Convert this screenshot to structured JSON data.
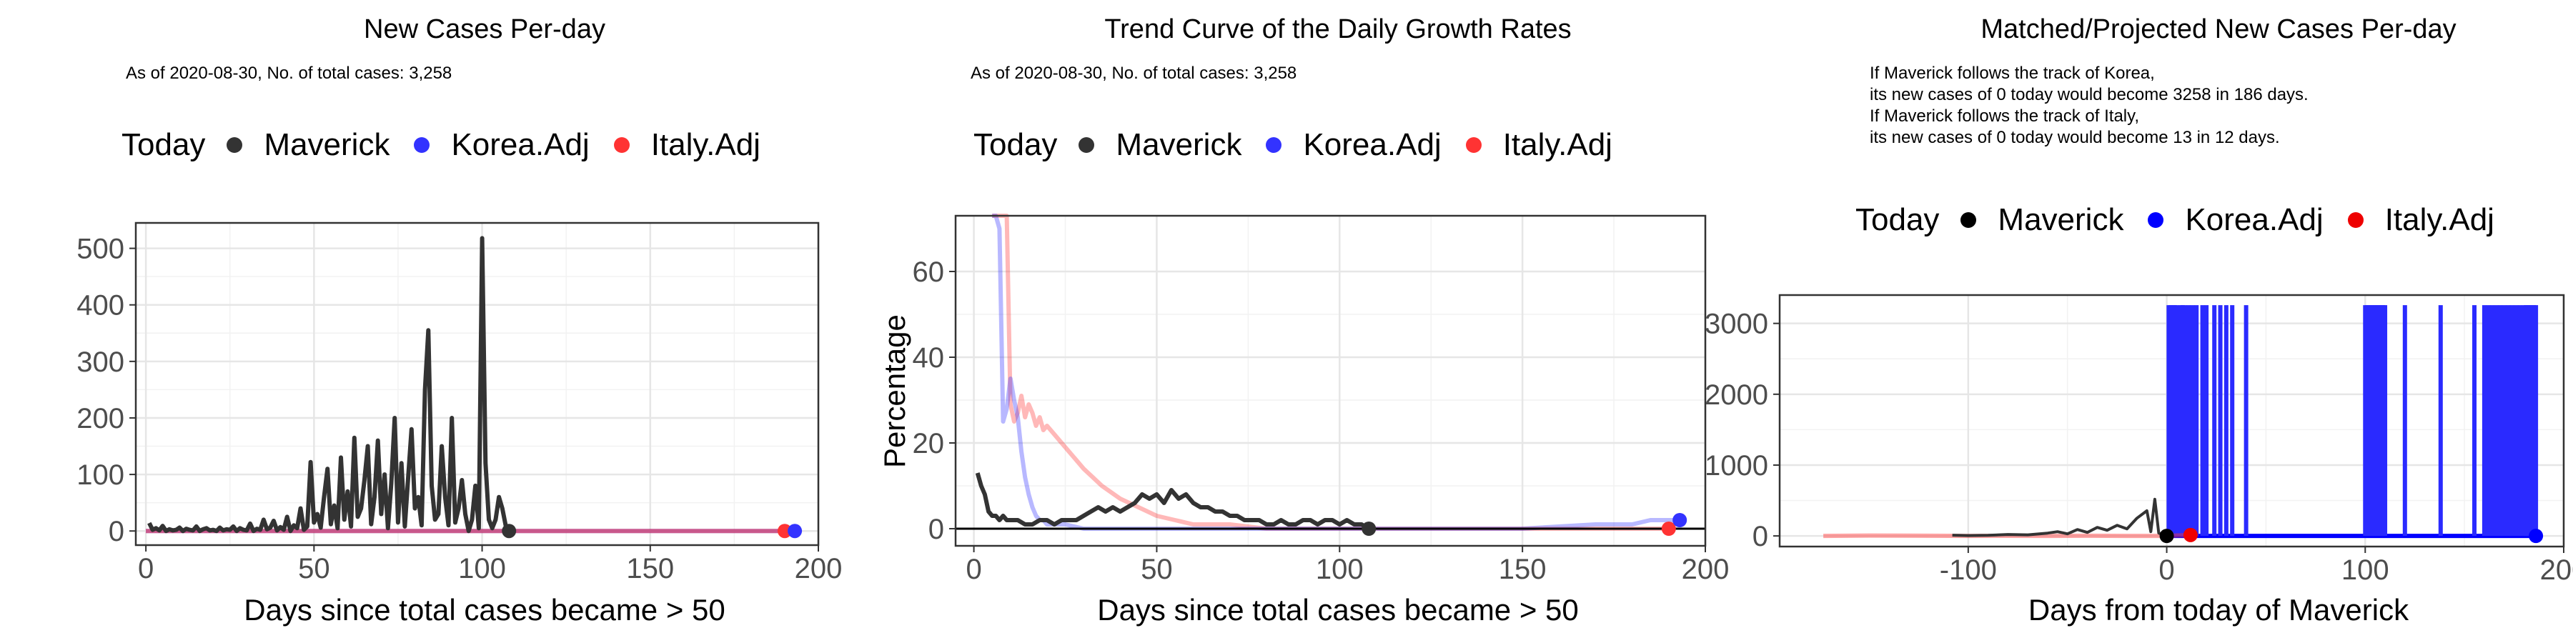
{
  "legend": {
    "title": "Today",
    "items": [
      {
        "label": "Maverick",
        "color": "#333333"
      },
      {
        "label": "Korea.Adj",
        "color": "#3333ff"
      },
      {
        "label": "Italy.Adj",
        "color": "#ff3333"
      }
    ]
  },
  "panels": {
    "p1": {
      "title": "New Cases Per-day",
      "subtitle": "As of 2020-08-30, No. of total cases: 3,258",
      "xlabel": "Days since total cases became > 50"
    },
    "p2": {
      "title": "Trend Curve of the Daily Growth Rates",
      "subtitle": "As of 2020-08-30, No. of total cases: 3,258",
      "xlabel": "Days since total cases became > 50",
      "ylabel": "Percentage"
    },
    "p3": {
      "title": "Matched/Projected New Cases Per-day",
      "note": [
        "If Maverick follows the track of Korea,",
        "its new cases of 0 today would become 3258 in 186 days.",
        "If Maverick follows the track of Italy,",
        "its new cases of 0 today would become 13 in 12 days."
      ],
      "xlabel": "Days from today of Maverick"
    }
  },
  "chart_data": [
    {
      "type": "line",
      "title": "New Cases Per-day",
      "xlabel": "Days since total cases became > 50",
      "ylabel": "",
      "xlim": [
        -3,
        200
      ],
      "ylim": [
        -25,
        545
      ],
      "xticks": [
        0,
        50,
        100,
        150,
        200
      ],
      "yticks": [
        0,
        100,
        200,
        300,
        400,
        500
      ],
      "grid": true,
      "series": [
        {
          "name": "Maverick",
          "color": "#333333",
          "x": [
            1,
            2,
            3,
            4,
            5,
            6,
            7,
            8,
            9,
            10,
            11,
            12,
            13,
            14,
            15,
            16,
            17,
            18,
            19,
            20,
            21,
            22,
            23,
            24,
            25,
            26,
            27,
            28,
            29,
            30,
            31,
            32,
            33,
            34,
            35,
            36,
            37,
            38,
            39,
            40,
            41,
            42,
            43,
            44,
            45,
            46,
            47,
            48,
            49,
            50,
            51,
            52,
            53,
            54,
            55,
            56,
            57,
            58,
            59,
            60,
            61,
            62,
            63,
            64,
            65,
            66,
            67,
            68,
            69,
            70,
            71,
            72,
            73,
            74,
            75,
            76,
            77,
            78,
            79,
            80,
            81,
            82,
            83,
            84,
            85,
            86,
            87,
            88,
            89,
            90,
            91,
            92,
            93,
            94,
            95,
            96,
            97,
            98,
            99,
            100,
            101,
            102,
            103,
            104,
            105,
            106,
            107,
            108
          ],
          "y": [
            14,
            2,
            5,
            1,
            9,
            0,
            3,
            1,
            2,
            6,
            0,
            4,
            2,
            1,
            8,
            0,
            3,
            5,
            1,
            2,
            0,
            6,
            1,
            3,
            2,
            8,
            0,
            5,
            2,
            1,
            13,
            0,
            4,
            2,
            20,
            3,
            6,
            18,
            1,
            7,
            2,
            25,
            0,
            10,
            5,
            40,
            2,
            8,
            122,
            15,
            30,
            6,
            60,
            110,
            12,
            45,
            5,
            130,
            20,
            70,
            8,
            165,
            25,
            40,
            90,
            150,
            12,
            60,
            160,
            30,
            100,
            5,
            85,
            200,
            15,
            120,
            8,
            95,
            180,
            40,
            60,
            10,
            250,
            355,
            80,
            20,
            30,
            150,
            60,
            10,
            200,
            15,
            40,
            90,
            30,
            0,
            20,
            80,
            5,
            518,
            120,
            20,
            5,
            20,
            60,
            40,
            10,
            0
          ]
        },
        {
          "name": "Korea.Adj",
          "color": "#3333ff",
          "x": [
            0,
            193
          ],
          "y": [
            0,
            0
          ],
          "today": {
            "x": 193,
            "y": 0
          }
        },
        {
          "name": "Italy.Adj",
          "color": "#ff3333",
          "x": [
            0,
            190
          ],
          "y": [
            0,
            0
          ],
          "today": {
            "x": 190,
            "y": 0
          }
        }
      ],
      "today_points": [
        {
          "series": "Maverick",
          "x": 108,
          "y": 0
        }
      ]
    },
    {
      "type": "line",
      "title": "Trend Curve of the Daily Growth Rates",
      "xlabel": "Days since total cases became > 50",
      "ylabel": "Percentage",
      "xlim": [
        -5,
        200
      ],
      "ylim": [
        -4,
        73
      ],
      "xticks": [
        0,
        50,
        100,
        150,
        200
      ],
      "yticks": [
        0,
        20,
        40,
        60
      ],
      "grid": true,
      "hline": 0,
      "series": [
        {
          "name": "Maverick",
          "color": "#333333",
          "x": [
            1,
            2,
            3,
            4,
            5,
            6,
            7,
            8,
            9,
            10,
            12,
            14,
            16,
            18,
            20,
            22,
            24,
            26,
            28,
            30,
            32,
            34,
            36,
            38,
            40,
            42,
            44,
            46,
            48,
            50,
            52,
            54,
            56,
            58,
            60,
            62,
            64,
            66,
            68,
            70,
            72,
            74,
            76,
            78,
            80,
            82,
            84,
            86,
            88,
            90,
            92,
            94,
            96,
            98,
            100,
            102,
            104,
            106,
            108
          ],
          "y": [
            13,
            10,
            8,
            4,
            3,
            3,
            2,
            3,
            2,
            2,
            2,
            1,
            1,
            2,
            2,
            1,
            2,
            2,
            2,
            3,
            4,
            5,
            4,
            5,
            4,
            5,
            6,
            8,
            7,
            8,
            6,
            9,
            7,
            8,
            6,
            5,
            5,
            4,
            4,
            3,
            3,
            2,
            2,
            2,
            1,
            1,
            2,
            1,
            1,
            2,
            2,
            1,
            2,
            2,
            1,
            2,
            1,
            1,
            0
          ]
        },
        {
          "name": "Korea.Adj",
          "color": "#3333ff",
          "x": [
            5,
            6,
            7,
            8,
            9,
            10,
            11,
            12,
            13,
            14,
            15,
            16,
            17,
            18,
            19,
            20,
            21,
            22,
            23,
            25,
            30,
            40,
            60,
            100,
            150,
            170,
            180,
            185,
            190,
            193
          ],
          "y": [
            73,
            73,
            70,
            25,
            28,
            35,
            30,
            26,
            18,
            12,
            8,
            5,
            3,
            2,
            2,
            1,
            1,
            1,
            1,
            1,
            0,
            0,
            0,
            0,
            0,
            1,
            1,
            2,
            2,
            2
          ],
          "today": {
            "x": 193,
            "y": 2
          }
        },
        {
          "name": "Italy.Adj",
          "color": "#ff3333",
          "x": [
            5,
            7,
            9,
            10,
            11,
            12,
            13,
            14,
            15,
            16,
            17,
            18,
            19,
            20,
            22,
            24,
            26,
            28,
            30,
            35,
            40,
            45,
            50,
            55,
            60,
            70,
            80,
            90,
            100,
            120,
            150,
            190
          ],
          "y": [
            73,
            73,
            73,
            29,
            25,
            27,
            31,
            26,
            29,
            27,
            24,
            26,
            23,
            24,
            22,
            20,
            18,
            16,
            14,
            10,
            7,
            5,
            3,
            2,
            1,
            1,
            0,
            0,
            0,
            0,
            0,
            0
          ],
          "today": {
            "x": 190,
            "y": 0
          }
        }
      ],
      "today_points": [
        {
          "series": "Maverick",
          "x": 108,
          "y": 0
        }
      ]
    },
    {
      "type": "line",
      "title": "Matched/Projected New Cases Per-day",
      "xlabel": "Days from today of Maverick",
      "ylabel": "",
      "xlim": [
        -195,
        200
      ],
      "ylim": [
        -150,
        3400
      ],
      "xticks": [
        -100,
        0,
        100,
        200
      ],
      "yticks": [
        0,
        1000,
        2000,
        3000
      ],
      "grid": true,
      "series": [
        {
          "name": "Korea.Adj",
          "color": "#3333ff",
          "spikes": [
            1,
            2,
            3,
            4,
            5,
            7,
            8,
            9,
            11,
            13,
            15,
            18,
            20,
            24,
            27,
            30,
            33,
            40,
            100,
            101,
            102,
            103,
            104,
            105,
            106,
            107,
            108,
            109,
            110,
            120,
            138,
            155,
            160,
            162,
            164,
            166,
            168,
            170,
            172,
            174,
            176,
            178,
            180,
            181,
            182,
            183,
            184,
            185,
            186
          ],
          "spike_height": 3258,
          "range": [
            0,
            186
          ],
          "today": {
            "x": 186,
            "y": 0
          }
        },
        {
          "name": "Italy.Adj",
          "color": "#ff3333",
          "x": [
            -173,
            -150,
            -120,
            -100,
            -80,
            -60,
            -40,
            -20,
            0,
            12
          ],
          "y": [
            0,
            5,
            2,
            0,
            1,
            0,
            2,
            0,
            0,
            13
          ],
          "today": {
            "x": 12,
            "y": 13
          }
        },
        {
          "name": "Maverick",
          "color": "#000000",
          "x": [
            -108,
            -100,
            -90,
            -80,
            -70,
            -60,
            -55,
            -50,
            -45,
            -40,
            -35,
            -30,
            -25,
            -20,
            -15,
            -10,
            -8,
            -6,
            -4,
            -2,
            0
          ],
          "y": [
            10,
            5,
            8,
            20,
            15,
            40,
            60,
            30,
            90,
            50,
            120,
            80,
            150,
            100,
            250,
            355,
            60,
            518,
            40,
            20,
            0
          ],
          "today": {
            "x": 0,
            "y": 0
          }
        }
      ]
    }
  ]
}
